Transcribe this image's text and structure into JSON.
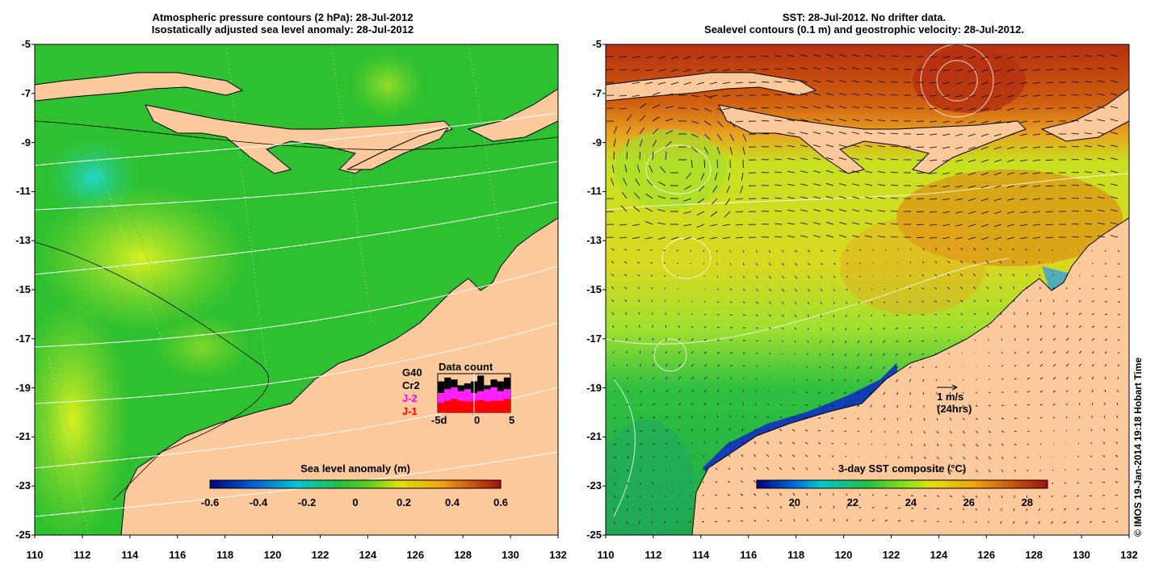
{
  "left_panel": {
    "title_line1": "Atmospheric pressure contours (2 hPa): 28-Jul-2012",
    "title_line2": "Isostatically adjusted sea level anomaly: 28-Jul-2012",
    "colorbar_label": "Sea level anomaly (m)",
    "colorbar_ticks": [
      "-0.6",
      "-0.4",
      "-0.2",
      "0",
      "0.2",
      "0.4",
      "0.6"
    ],
    "data_count": {
      "title": "Data count",
      "missions": [
        {
          "name": "G40",
          "color": "#000000"
        },
        {
          "name": "Cr2",
          "color": "#000000"
        },
        {
          "name": "J-2",
          "color": "#ff00ff"
        },
        {
          "name": "J-1",
          "color": "#ff0000"
        }
      ],
      "x_ticks": [
        "-5d",
        "0",
        "5"
      ],
      "bars_black": [
        0.8,
        0.9,
        0.85,
        0.7,
        0.75,
        0.8,
        0.95,
        0.7,
        0.85,
        0.8,
        0.9
      ],
      "bars_magenta": [
        0.5,
        0.6,
        0.65,
        0.55,
        0.6,
        0.5,
        0.55,
        0.6,
        0.65,
        0.55,
        0.6
      ],
      "bars_red": [
        0.25,
        0.3,
        0.35,
        0.3,
        0.28,
        0.3,
        0.32,
        0.28,
        0.3,
        0.3,
        0.35
      ]
    }
  },
  "right_panel": {
    "title_line1": "SST: 28-Jul-2012. No drifter data.",
    "title_line2": "Sealevel contours (0.1 m) and geostrophic velocity: 28-Jul-2012.",
    "colorbar_label": "3-day SST composite (°C)",
    "colorbar_ticks": [
      "20",
      "22",
      "24",
      "26",
      "28"
    ],
    "velocity_key_line1": "1 m/s",
    "velocity_key_line2": "(24hrs)"
  },
  "axes": {
    "y_ticks": [
      "-5",
      "-7",
      "-9",
      "-11",
      "-13",
      "-15",
      "-17",
      "-19",
      "-21",
      "-23",
      "-25"
    ],
    "x_ticks": [
      "110",
      "112",
      "114",
      "116",
      "118",
      "120",
      "122",
      "124",
      "126",
      "128",
      "130",
      "132"
    ]
  },
  "credit": "© IMOS 19-Jan-2014 19:18 Hobart Time",
  "colors": {
    "land": "#fbc99b",
    "sla_ocean": "#2fc02f",
    "sla_high": "#b8f030",
    "sla_low": "#20d0c0",
    "sst_warm": "#e07a10",
    "sst_hot": "#b53010",
    "sst_mid": "#d8e820",
    "sst_cool": "#20b840",
    "sst_cold": "#0020a0"
  }
}
